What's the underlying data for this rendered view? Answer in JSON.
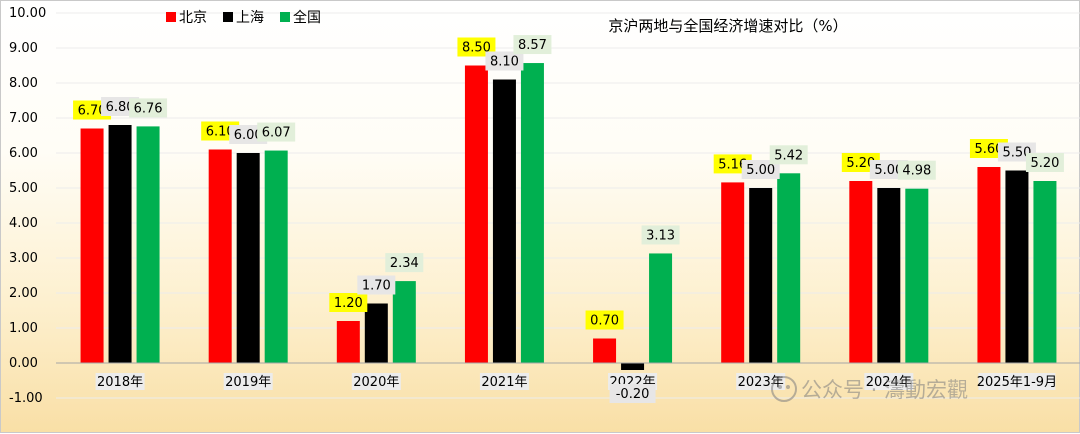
{
  "chart_data": {
    "type": "bar",
    "title": "京沪两地与全国经济增速对比（%）",
    "categories": [
      "2018年",
      "2019年",
      "2020年",
      "2021年",
      "2022年",
      "2023年",
      "2024年",
      "2025年1-9月"
    ],
    "series": [
      {
        "name": "北京",
        "color": "#ff0000",
        "values": [
          6.7,
          6.1,
          1.2,
          8.5,
          0.7,
          5.16,
          5.2,
          5.6
        ],
        "labels": [
          "6.70",
          "6.10",
          "1.20",
          "8.50",
          "0.70",
          "5.16",
          "5.20",
          "5.60"
        ]
      },
      {
        "name": "上海",
        "color": "#000000",
        "values": [
          6.8,
          6.0,
          1.7,
          8.1,
          -0.2,
          5.0,
          5.0,
          5.5
        ],
        "labels": [
          "6.80",
          "6.00",
          "1.70",
          "8.10",
          "-0.20",
          "5.00",
          "5.00",
          "5.50"
        ]
      },
      {
        "name": "全国",
        "color": "#00b050",
        "values": [
          6.76,
          6.07,
          2.34,
          8.57,
          3.13,
          5.42,
          4.98,
          5.2
        ],
        "labels": [
          "6.76",
          "6.07",
          "2.34",
          "8.57",
          "3.13",
          "5.42",
          "4.98",
          "5.20"
        ]
      }
    ],
    "yticks": [
      "10.00",
      "9.00",
      "8.00",
      "7.00",
      "6.00",
      "5.00",
      "4.00",
      "3.00",
      "2.00",
      "1.00",
      "0.00",
      "-1.00"
    ],
    "ylim": [
      -1,
      10
    ],
    "legend_position": "top-left",
    "label_backgrounds": {
      "北京": "#ffff00",
      "上海": "#e7e6e6",
      "全国": "#e2efda"
    }
  },
  "watermark": "公众号 · 濤動宏觀"
}
